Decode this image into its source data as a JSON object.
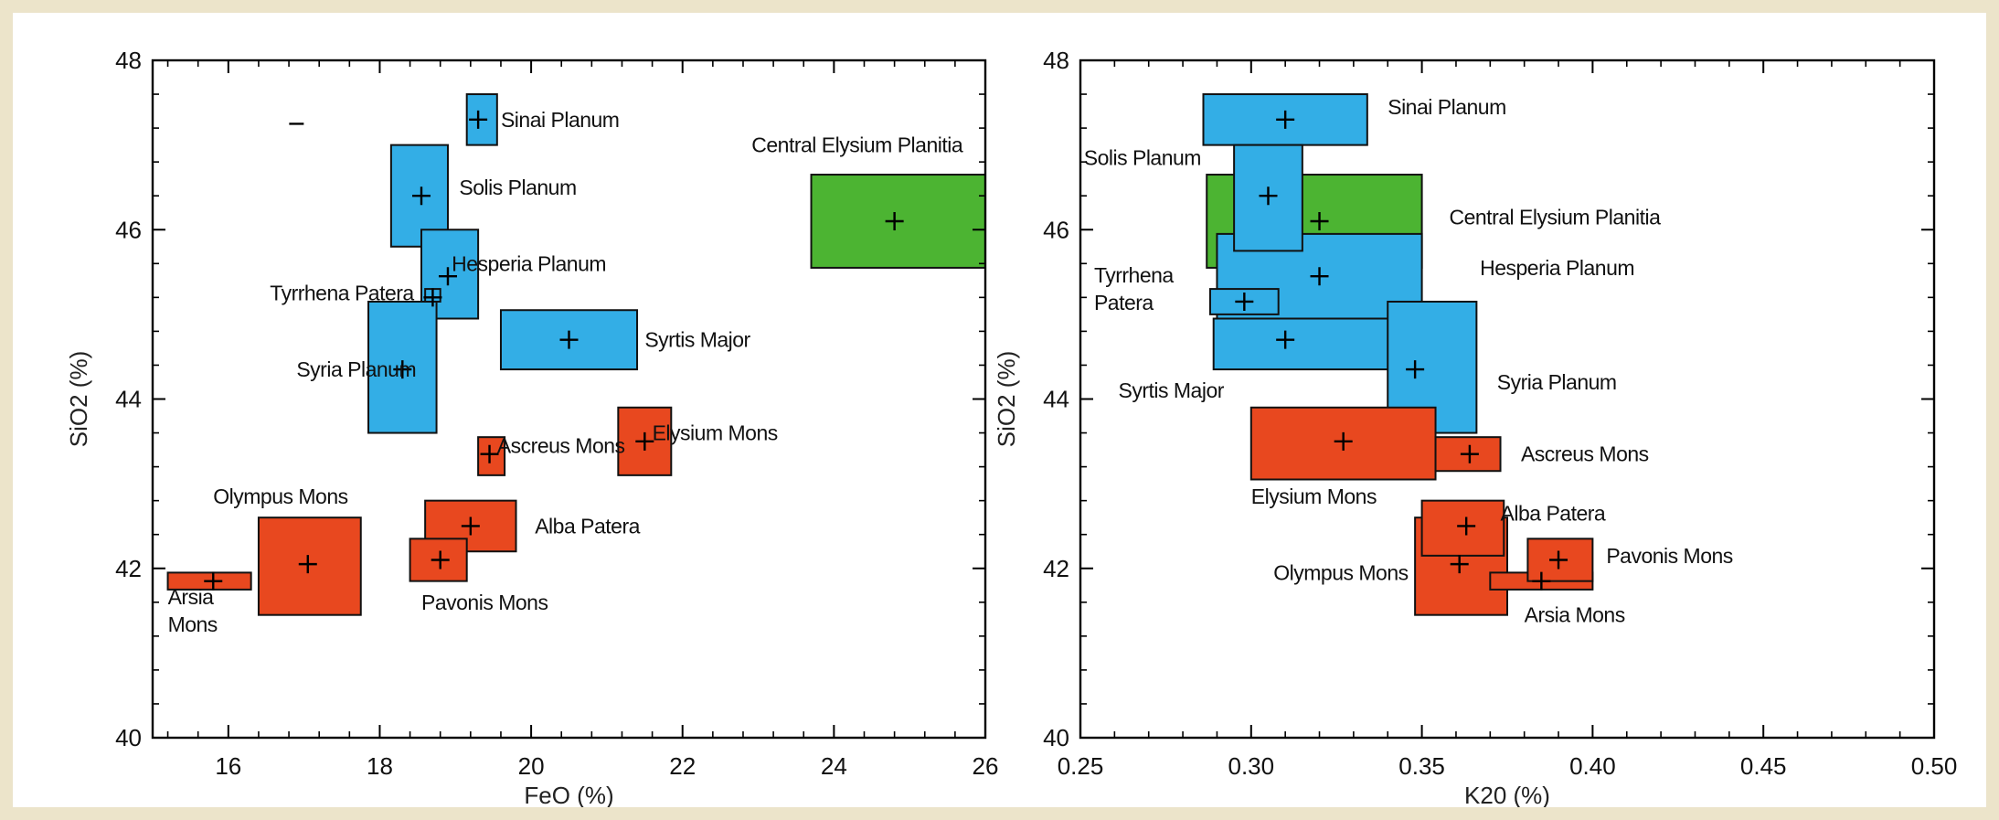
{
  "colors": {
    "background": "#ece4ca",
    "panel": "#ffffff",
    "blue": "#33aee6",
    "red": "#e8481f",
    "green": "#4cb432",
    "stroke": "#111111"
  },
  "chart_data": [
    {
      "type": "scatter",
      "title": "",
      "xlabel": "FeO (%)",
      "ylabel": "SiO2 (%)",
      "xlim": [
        15,
        26
      ],
      "ylim": [
        40,
        48
      ],
      "xticks": [
        16,
        18,
        20,
        22,
        24,
        26
      ],
      "yticks": [
        40,
        42,
        44,
        46,
        48
      ],
      "grid": false,
      "legend": "none",
      "stray_marks": [
        {
          "x": 16.9,
          "y": 47.25
        }
      ],
      "regions": [
        {
          "name": "Sinai Planum",
          "color": "blue",
          "x": 19.3,
          "y": 47.3,
          "xmin": 19.15,
          "xmax": 19.55,
          "ymin": 47.0,
          "ymax": 47.6,
          "label": "Sinai Planum",
          "label_x": 19.6,
          "label_y": 47.3,
          "anchor": "start"
        },
        {
          "name": "Solis Planum",
          "color": "blue",
          "x": 18.55,
          "y": 46.4,
          "xmin": 18.15,
          "xmax": 18.9,
          "ymin": 45.8,
          "ymax": 47.0,
          "label": "Solis Planum",
          "label_x": 19.05,
          "label_y": 46.5,
          "anchor": "start"
        },
        {
          "name": "Hesperia Planum",
          "color": "blue",
          "x": 18.9,
          "y": 45.45,
          "xmin": 18.55,
          "xmax": 19.3,
          "ymin": 44.95,
          "ymax": 46.0,
          "label": "Hesperia Planum",
          "label_x": 18.95,
          "label_y": 45.6,
          "anchor": "start"
        },
        {
          "name": "Syria Planum",
          "color": "blue",
          "x": 18.3,
          "y": 44.35,
          "xmin": 17.85,
          "xmax": 18.75,
          "ymin": 43.6,
          "ymax": 45.15,
          "label": "Syria Planum",
          "label_x": 16.9,
          "label_y": 44.35,
          "anchor": "start"
        },
        {
          "name": "Syrtis Major",
          "color": "blue",
          "x": 20.5,
          "y": 44.7,
          "xmin": 19.6,
          "xmax": 21.4,
          "ymin": 44.35,
          "ymax": 45.05,
          "label": "Syrtis Major",
          "label_x": 21.5,
          "label_y": 44.7,
          "anchor": "start"
        },
        {
          "name": "Central Elysium Planitia",
          "color": "green",
          "x": 24.8,
          "y": 46.1,
          "xmin": 23.7,
          "xmax": 26.0,
          "ymin": 45.55,
          "ymax": 46.65,
          "label": "Central Elysium Planitia",
          "label_x": 25.7,
          "label_y": 47.0,
          "anchor": "end"
        },
        {
          "name": "Ascreus Mons",
          "color": "red",
          "x": 19.45,
          "y": 43.35,
          "xmin": 19.3,
          "xmax": 19.65,
          "ymin": 43.1,
          "ymax": 43.55,
          "label": "Ascreus Mons",
          "label_x": 19.55,
          "label_y": 43.45,
          "anchor": "start"
        },
        {
          "name": "Elysium Mons",
          "color": "red",
          "x": 21.5,
          "y": 43.5,
          "xmin": 21.15,
          "xmax": 21.85,
          "ymin": 43.1,
          "ymax": 43.9,
          "label": "Elysium Mons",
          "label_x": 21.6,
          "label_y": 43.6,
          "anchor": "start"
        },
        {
          "name": "Olympus Mons",
          "color": "red",
          "x": 17.05,
          "y": 42.05,
          "xmin": 16.4,
          "xmax": 17.75,
          "ymin": 41.45,
          "ymax": 42.6,
          "label": "Olympus Mons",
          "label_x": 15.8,
          "label_y": 42.85,
          "anchor": "start"
        },
        {
          "name": "Alba Patera",
          "color": "red",
          "x": 19.2,
          "y": 42.5,
          "xmin": 18.6,
          "xmax": 19.8,
          "ymin": 42.2,
          "ymax": 42.8,
          "label": "Alba Patera",
          "label_x": 20.05,
          "label_y": 42.5,
          "anchor": "start"
        },
        {
          "name": "Pavonis Mons",
          "color": "red",
          "x": 18.8,
          "y": 42.1,
          "xmin": 18.4,
          "xmax": 19.15,
          "ymin": 41.85,
          "ymax": 42.35,
          "label": "Pavonis Mons",
          "label_x": 18.55,
          "label_y": 41.6,
          "anchor": "start"
        },
        {
          "name": "Arsia Mons",
          "color": "red",
          "x": 15.8,
          "y": 41.85,
          "xmin": 15.2,
          "xmax": 16.3,
          "ymin": 41.75,
          "ymax": 41.95,
          "label_lines": [
            "Arsia",
            "Mons"
          ],
          "label_x": 15.2,
          "label_y": 41.5,
          "anchor": "start"
        },
        {
          "name": "Tyrrhena Patera",
          "color": "blue",
          "x": 18.7,
          "y": 45.2,
          "xmin": 18.6,
          "xmax": 18.8,
          "ymin": 45.15,
          "ymax": 45.3,
          "label": "Tyrrhena Patera",
          "label_x": 18.45,
          "label_y": 45.25,
          "anchor": "end"
        }
      ]
    },
    {
      "type": "scatter",
      "title": "",
      "xlabel": "K20 (%)",
      "ylabel": "SiO2 (%)",
      "xlim": [
        0.25,
        0.5
      ],
      "ylim": [
        40,
        48
      ],
      "xticks": [
        "0.25",
        "0.30",
        "0.35",
        "0.40",
        "0.45",
        "0.50"
      ],
      "yticks": [
        40,
        42,
        44,
        46,
        48
      ],
      "grid": false,
      "legend": "none",
      "regions": [
        {
          "name": "Central Elysium Planitia",
          "color": "green",
          "x": 0.32,
          "y": 46.1,
          "xmin": 0.287,
          "xmax": 0.35,
          "ymin": 45.55,
          "ymax": 46.65,
          "label": "Central Elysium Planitia",
          "label_x": 0.358,
          "label_y": 46.15,
          "anchor": "start"
        },
        {
          "name": "Hesperia Planum",
          "color": "blue",
          "x": 0.32,
          "y": 45.45,
          "xmin": 0.29,
          "xmax": 0.35,
          "ymin": 44.95,
          "ymax": 45.95,
          "label": "Hesperia Planum",
          "label_x": 0.367,
          "label_y": 45.55,
          "anchor": "start"
        },
        {
          "name": "Sinai Planum",
          "color": "blue",
          "x": 0.31,
          "y": 47.3,
          "xmin": 0.286,
          "xmax": 0.334,
          "ymin": 47.0,
          "ymax": 47.6,
          "label": "Sinai Planum",
          "label_x": 0.34,
          "label_y": 47.45,
          "anchor": "start"
        },
        {
          "name": "Syrtis Major",
          "color": "blue",
          "x": 0.31,
          "y": 44.7,
          "xmin": 0.289,
          "xmax": 0.345,
          "ymin": 44.35,
          "ymax": 44.95,
          "label": "Syrtis Major",
          "label_x": 0.292,
          "label_y": 44.1,
          "anchor": "end"
        },
        {
          "name": "Solis Planum",
          "color": "blue",
          "x": 0.305,
          "y": 46.4,
          "xmin": 0.295,
          "xmax": 0.315,
          "ymin": 45.75,
          "ymax": 47.0,
          "label": "Solis Planum",
          "label_x": 0.251,
          "label_y": 46.85,
          "anchor": "start"
        },
        {
          "name": "Tyrrhena Patera",
          "color": "blue",
          "x": 0.298,
          "y": 45.15,
          "xmin": 0.288,
          "xmax": 0.308,
          "ymin": 45.0,
          "ymax": 45.3,
          "label_lines": [
            "Tyrrhena",
            "Patera"
          ],
          "label_x": 0.254,
          "label_y": 45.3,
          "anchor": "start"
        },
        {
          "name": "Syria Planum",
          "color": "blue",
          "x": 0.348,
          "y": 44.35,
          "xmin": 0.34,
          "xmax": 0.366,
          "ymin": 43.6,
          "ymax": 45.15,
          "label": "Syria Planum",
          "label_x": 0.372,
          "label_y": 44.2,
          "anchor": "start"
        },
        {
          "name": "Elysium Mons",
          "color": "red",
          "x": 0.327,
          "y": 43.5,
          "xmin": 0.3,
          "xmax": 0.354,
          "ymin": 43.05,
          "ymax": 43.9,
          "label": "Elysium Mons",
          "label_x": 0.3,
          "label_y": 42.85,
          "anchor": "start"
        },
        {
          "name": "Ascreus Mons",
          "color": "red",
          "x": 0.364,
          "y": 43.35,
          "xmin": 0.354,
          "xmax": 0.373,
          "ymin": 43.15,
          "ymax": 43.55,
          "label": "Ascreus Mons",
          "label_x": 0.379,
          "label_y": 43.35,
          "anchor": "start"
        },
        {
          "name": "Olympus Mons",
          "color": "red",
          "x": 0.361,
          "y": 42.05,
          "xmin": 0.348,
          "xmax": 0.375,
          "ymin": 41.45,
          "ymax": 42.6,
          "label": "Olympus Mons",
          "label_x": 0.346,
          "label_y": 41.95,
          "anchor": "end"
        },
        {
          "name": "Alba Patera",
          "color": "red",
          "x": 0.363,
          "y": 42.5,
          "xmin": 0.35,
          "xmax": 0.374,
          "ymin": 42.15,
          "ymax": 42.8,
          "label": "Alba Patera",
          "label_x": 0.373,
          "label_y": 42.65,
          "anchor": "start"
        },
        {
          "name": "Arsia Mons",
          "color": "red",
          "x": 0.385,
          "y": 41.85,
          "xmin": 0.37,
          "xmax": 0.4,
          "ymin": 41.75,
          "ymax": 41.95,
          "label": "Arsia Mons",
          "label_x": 0.38,
          "label_y": 41.45,
          "anchor": "start"
        },
        {
          "name": "Pavonis Mons",
          "color": "red",
          "x": 0.39,
          "y": 42.1,
          "xmin": 0.381,
          "xmax": 0.4,
          "ymin": 41.85,
          "ymax": 42.35,
          "label": "Pavonis Mons",
          "label_x": 0.404,
          "label_y": 42.15,
          "anchor": "start"
        }
      ]
    }
  ]
}
